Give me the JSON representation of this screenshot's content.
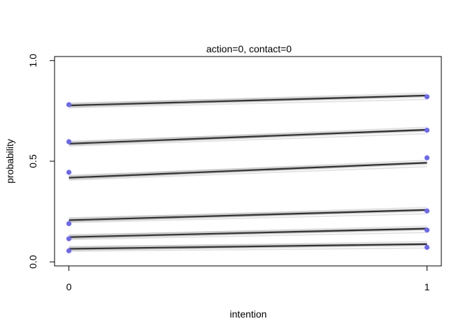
{
  "chart_data": {
    "type": "line",
    "title": "action=0, contact=0",
    "xlabel": "intention",
    "ylabel": "probability",
    "x": [
      0,
      1
    ],
    "xlim": [
      -0.04,
      1.04
    ],
    "ylim": [
      -0.02,
      1.02
    ],
    "x_ticks": [
      "0",
      "1"
    ],
    "y_ticks": [
      "0.0",
      "0.5",
      "1.0"
    ],
    "grid": false,
    "legend": "none",
    "colors": {
      "line": "#000000",
      "point": "#6b66ff",
      "frame": "#000000"
    },
    "series": [
      {
        "values": [
          0.065,
          0.088
        ]
      },
      {
        "values": [
          0.123,
          0.165
        ]
      },
      {
        "values": [
          0.207,
          0.258
        ]
      },
      {
        "values": [
          0.418,
          0.492
        ]
      },
      {
        "values": [
          0.587,
          0.656
        ]
      },
      {
        "values": [
          0.777,
          0.826
        ]
      }
    ],
    "observed_points": [
      {
        "x": 0,
        "y": 0.055
      },
      {
        "x": 0,
        "y": 0.115
      },
      {
        "x": 0,
        "y": 0.19
      },
      {
        "x": 0,
        "y": 0.445
      },
      {
        "x": 0,
        "y": 0.597
      },
      {
        "x": 0,
        "y": 0.781
      },
      {
        "x": 1,
        "y": 0.072
      },
      {
        "x": 1,
        "y": 0.158
      },
      {
        "x": 1,
        "y": 0.253
      },
      {
        "x": 1,
        "y": 0.517
      },
      {
        "x": 1,
        "y": 0.654
      },
      {
        "x": 1,
        "y": 0.82
      }
    ]
  }
}
